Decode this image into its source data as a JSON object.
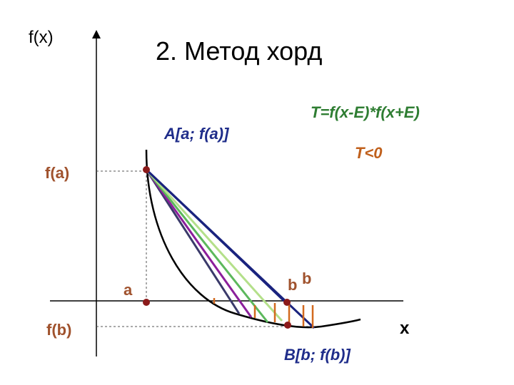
{
  "title": "2. Метод хорд",
  "axis": {
    "y_label": "f(x)",
    "x_label": "x"
  },
  "labels": {
    "formula": "T=f(x-E)*f(x+E)",
    "condition": "T<0",
    "point_a": "A[a; f(a)]",
    "point_b": "B[b; f(b)]",
    "fa": "f(a)",
    "fb": "f(b)",
    "a": "a",
    "b": "b",
    "b_next": "b"
  }
}
